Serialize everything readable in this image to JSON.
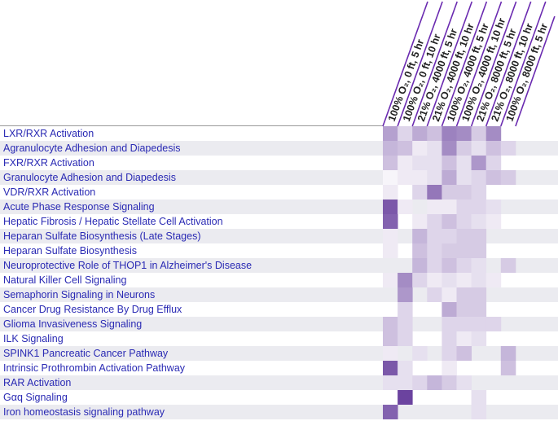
{
  "chart_data": {
    "type": "heatmap",
    "columns": [
      "100% O₂, 0 ft, 5 hr",
      "100% O₂, 0 ft, 10 hr",
      "21% O₂, 4000 ft, 5 hr",
      "21% O₂, 4000 ft, 10 hr",
      "100% O₂, 4000 ft, 5 hr",
      "100% O₂, 4000 ft, 10 hr",
      "21% O₂, 8000 ft, 5 hr",
      "21% O₂, 8000 ft, 10 hr",
      "100% O₂, 8000 ft, 5 hr"
    ],
    "rows": [
      "LXR/RXR Activation",
      "Agranulocyte Adhesion and Diapedesis",
      "FXR/RXR Activation",
      "Granulocyte Adhesion and Diapedesis",
      "VDR/RXR Activation",
      "Acute Phase Response Signaling",
      "Hepatic Fibrosis / Hepatic Stellate Cell Activation",
      "Heparan Sulfate Biosynthesis (Late Stages)",
      "Heparan Sulfate Biosynthesis",
      "Neuroprotective Role of THOP1 in Alzheimer's Disease",
      "Natural Killer Cell Signaling",
      "Semaphorin Signaling in Neurons",
      "Cancer Drug Resistance By Drug Efflux",
      "Glioma Invasiveness Signaling",
      "ILK Signaling",
      "SPINK1 Pancreatic Cancer Pathway",
      "Intrinsic Prothrombin Activation Pathway",
      "RAR Activation",
      "Gαq Signaling",
      "Iron homeostasis signaling pathway"
    ],
    "values": [
      [
        0.45,
        0.2,
        0.4,
        0.3,
        0.6,
        0.55,
        0.25,
        0.55,
        0.0
      ],
      [
        0.35,
        0.3,
        0.1,
        0.15,
        0.55,
        0.25,
        0.15,
        0.3,
        0.2
      ],
      [
        0.3,
        0.1,
        0.15,
        0.15,
        0.3,
        0.15,
        0.5,
        0.2,
        0.0
      ],
      [
        0.05,
        0.1,
        0.1,
        0.15,
        0.4,
        0.15,
        0.2,
        0.3,
        0.25
      ],
      [
        0.1,
        0.0,
        0.2,
        0.65,
        0.25,
        0.25,
        0.2,
        0.0,
        0.0
      ],
      [
        0.8,
        0.1,
        0.0,
        0.1,
        0.1,
        0.2,
        0.2,
        0.15,
        0.0
      ],
      [
        0.75,
        0.0,
        0.1,
        0.2,
        0.3,
        0.2,
        0.15,
        0.1,
        0.0
      ],
      [
        0.1,
        0.0,
        0.35,
        0.2,
        0.2,
        0.25,
        0.25,
        0.0,
        0.0
      ],
      [
        0.1,
        0.0,
        0.3,
        0.2,
        0.25,
        0.25,
        0.25,
        0.0,
        0.0
      ],
      [
        0.0,
        0.0,
        0.35,
        0.2,
        0.3,
        0.2,
        0.15,
        0.0,
        0.25
      ],
      [
        0.1,
        0.55,
        0.2,
        0.1,
        0.15,
        0.1,
        0.15,
        0.1,
        0.0
      ],
      [
        0.0,
        0.5,
        0.0,
        0.2,
        0.1,
        0.25,
        0.25,
        0.0,
        0.0
      ],
      [
        0.0,
        0.2,
        0.0,
        0.0,
        0.4,
        0.25,
        0.25,
        0.0,
        0.0
      ],
      [
        0.3,
        0.2,
        0.0,
        0.0,
        0.2,
        0.2,
        0.2,
        0.2,
        0.0
      ],
      [
        0.3,
        0.2,
        0.0,
        0.0,
        0.2,
        0.1,
        0.15,
        0.0,
        0.0
      ],
      [
        0.1,
        0.0,
        0.15,
        0.0,
        0.2,
        0.3,
        0.0,
        0.0,
        0.35
      ],
      [
        0.8,
        0.15,
        0.0,
        0.0,
        0.1,
        0.0,
        0.0,
        0.0,
        0.3
      ],
      [
        0.15,
        0.15,
        0.2,
        0.35,
        0.25,
        0.15,
        0.0,
        0.0,
        0.0
      ],
      [
        0.0,
        0.9,
        0.0,
        0.0,
        0.0,
        0.0,
        0.15,
        0.0,
        0.0
      ],
      [
        0.75,
        0.0,
        0.0,
        0.0,
        0.0,
        0.0,
        0.15,
        0.0,
        0.0
      ]
    ],
    "scale_color": "#5a2e94",
    "band_color": "#ebebf0",
    "header_line_color": "#6a2ab0",
    "label_color": "#2a2ab4"
  }
}
